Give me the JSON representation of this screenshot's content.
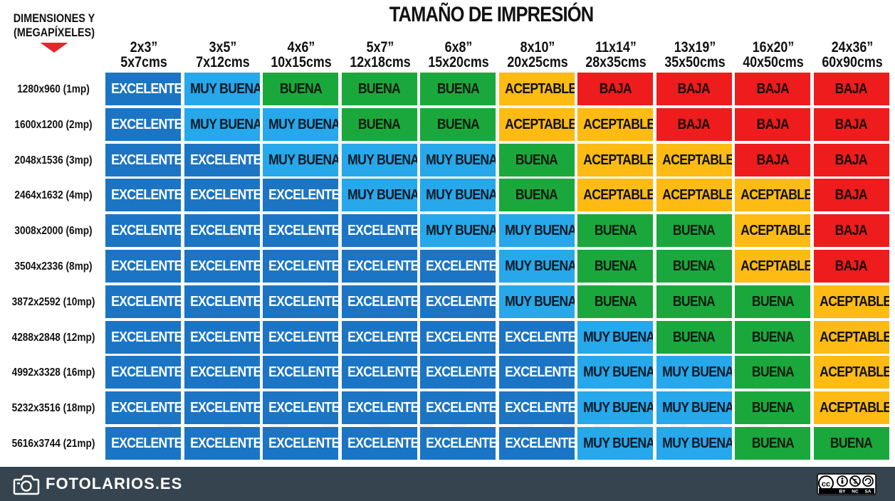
{
  "chart_data": {
    "type": "table",
    "title": "TAMAÑO DE IMPRESIÓN",
    "row_header": [
      "DIMENSIONES Y",
      "(MEGAPÍXELES)"
    ],
    "columns": [
      {
        "inch": "2x3”",
        "cm": "5x7cms"
      },
      {
        "inch": "3x5”",
        "cm": "7x12cms"
      },
      {
        "inch": "4x6”",
        "cm": "10x15cms"
      },
      {
        "inch": "5x7”",
        "cm": "12x18cms"
      },
      {
        "inch": "6x8”",
        "cm": "15x20cms"
      },
      {
        "inch": "8x10”",
        "cm": "20x25cms"
      },
      {
        "inch": "11x14”",
        "cm": "28x35cms"
      },
      {
        "inch": "13x19”",
        "cm": "35x50cms"
      },
      {
        "inch": "16x20”",
        "cm": "40x50cms"
      },
      {
        "inch": "24x36”",
        "cm": "60x90cms"
      }
    ],
    "rows": [
      {
        "label": "1280x960 (1mp)",
        "values": [
          "EXCELENTE",
          "MUY BUENA",
          "BUENA",
          "BUENA",
          "BUENA",
          "ACEPTABLE",
          "BAJA",
          "BAJA",
          "BAJA",
          "BAJA"
        ]
      },
      {
        "label": "1600x1200 (2mp)",
        "values": [
          "EXCELENTE",
          "MUY BUENA",
          "MUY BUENA",
          "BUENA",
          "BUENA",
          "ACEPTABLE",
          "ACEPTABLE",
          "BAJA",
          "BAJA",
          "BAJA"
        ]
      },
      {
        "label": "2048x1536 (3mp)",
        "values": [
          "EXCELENTE",
          "EXCELENTE",
          "MUY BUENA",
          "MUY BUENA",
          "MUY BUENA",
          "BUENA",
          "ACEPTABLE",
          "ACEPTABLE",
          "BAJA",
          "BAJA"
        ]
      },
      {
        "label": "2464x1632 (4mp)",
        "values": [
          "EXCELENTE",
          "EXCELENTE",
          "EXCELENTE",
          "MUY BUENA",
          "MUY BUENA",
          "BUENA",
          "ACEPTABLE",
          "ACEPTABLE",
          "ACEPTABLE",
          "BAJA"
        ]
      },
      {
        "label": "3008x2000 (6mp)",
        "values": [
          "EXCELENTE",
          "EXCELENTE",
          "EXCELENTE",
          "EXCELENTE",
          "MUY BUENA",
          "MUY BUENA",
          "BUENA",
          "BUENA",
          "ACEPTABLE",
          "BAJA"
        ]
      },
      {
        "label": "3504x2336 (8mp)",
        "values": [
          "EXCELENTE",
          "EXCELENTE",
          "EXCELENTE",
          "EXCELENTE",
          "EXCELENTE",
          "MUY BUENA",
          "BUENA",
          "BUENA",
          "ACEPTABLE",
          "BAJA"
        ]
      },
      {
        "label": "3872x2592 (10mp)",
        "values": [
          "EXCELENTE",
          "EXCELENTE",
          "EXCELENTE",
          "EXCELENTE",
          "EXCELENTE",
          "MUY BUENA",
          "BUENA",
          "BUENA",
          "BUENA",
          "ACEPTABLE"
        ]
      },
      {
        "label": "4288x2848 (12mp)",
        "values": [
          "EXCELENTE",
          "EXCELENTE",
          "EXCELENTE",
          "EXCELENTE",
          "EXCELENTE",
          "EXCELENTE",
          "MUY BUENA",
          "BUENA",
          "BUENA",
          "ACEPTABLE"
        ]
      },
      {
        "label": "4992x3328 (16mp)",
        "values": [
          "EXCELENTE",
          "EXCELENTE",
          "EXCELENTE",
          "EXCELENTE",
          "EXCELENTE",
          "EXCELENTE",
          "MUY BUENA",
          "MUY BUENA",
          "BUENA",
          "ACEPTABLE"
        ]
      },
      {
        "label": "5232x3516 (18mp)",
        "values": [
          "EXCELENTE",
          "EXCELENTE",
          "EXCELENTE",
          "EXCELENTE",
          "EXCELENTE",
          "EXCELENTE",
          "MUY BUENA",
          "MUY BUENA",
          "BUENA",
          "ACEPTABLE"
        ]
      },
      {
        "label": "5616x3744 (21mp)",
        "values": [
          "EXCELENTE",
          "EXCELENTE",
          "EXCELENTE",
          "EXCELENTE",
          "EXCELENTE",
          "EXCELENTE",
          "MUY BUENA",
          "MUY BUENA",
          "BUENA",
          "BUENA"
        ]
      }
    ],
    "quality_colors": {
      "EXCELENTE": {
        "bg": "#1b75c4",
        "fg": "#ffffff"
      },
      "MUY BUENA": {
        "bg": "#26a8ea",
        "fg": "#0d1a26"
      },
      "BUENA": {
        "bg": "#1aa83c",
        "fg": "#0d1a10"
      },
      "ACEPTABLE": {
        "bg": "#fdbb13",
        "fg": "#111111"
      },
      "BAJA": {
        "bg": "#ee1c1c",
        "fg": "#1a0808"
      }
    }
  },
  "footer": {
    "site": "FOTOLARIOS.ES",
    "logo_icon": "camera-logo-icon",
    "license_icon": "cc-by-nc-sa-icon",
    "license_labels": [
      "BY",
      "NC",
      "SA"
    ],
    "background": "#36444f"
  },
  "header_arrow_color": "#e8262a"
}
